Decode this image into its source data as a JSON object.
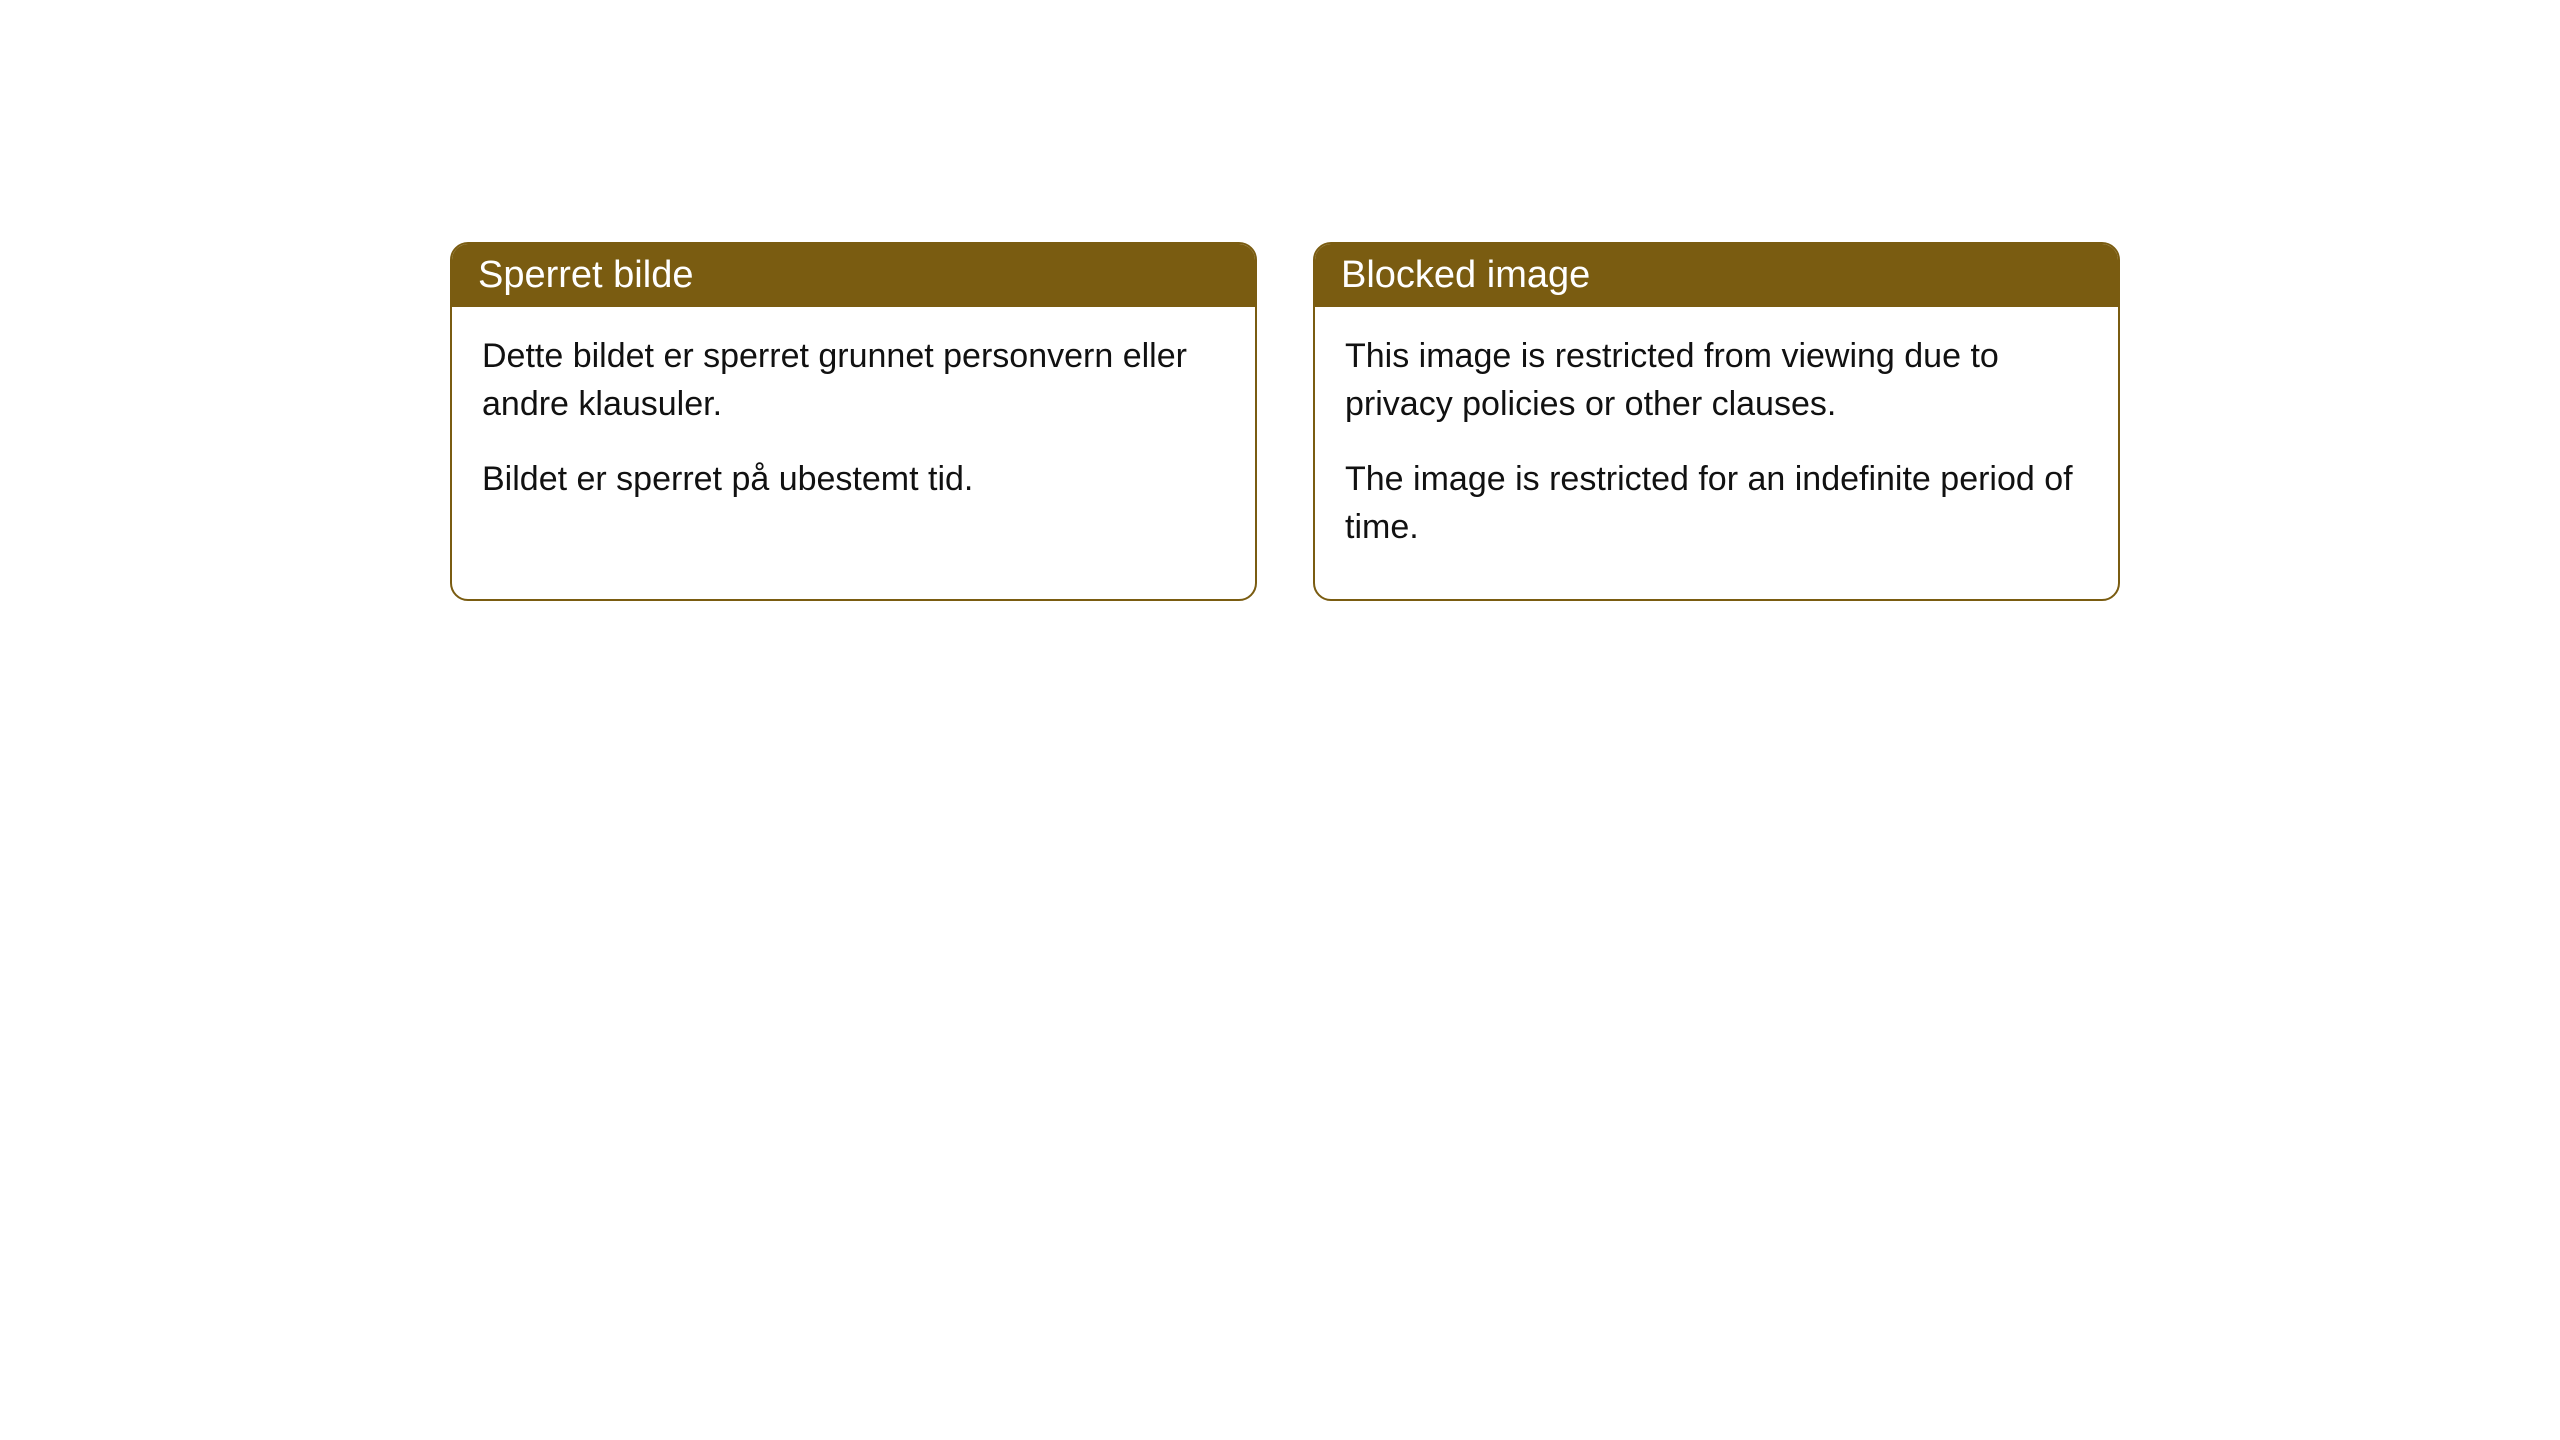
{
  "cards": [
    {
      "title": "Sperret bilde",
      "paragraph1": "Dette bildet er sperret grunnet personvern eller andre klausuler.",
      "paragraph2": "Bildet er sperret på ubestemt tid."
    },
    {
      "title": "Blocked image",
      "paragraph1": "This image is restricted from viewing due to privacy policies or other clauses.",
      "paragraph2": "The image is restricted for an indefinite period of time."
    }
  ],
  "styling": {
    "header_background": "#7a5c11",
    "header_text_color": "#ffffff",
    "border_color": "#7a5c11",
    "body_text_color": "#111111",
    "background_color": "#ffffff",
    "border_radius": 18,
    "header_fontsize": 38,
    "body_fontsize": 34
  }
}
